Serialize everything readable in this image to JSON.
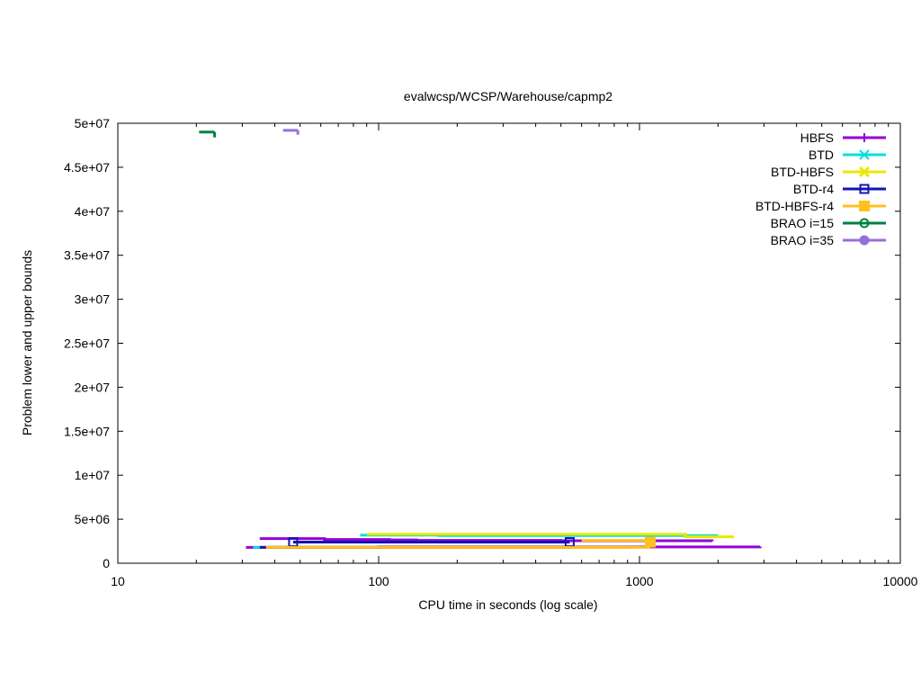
{
  "chart_data": {
    "type": "line",
    "title": "evalwcsp/WCSP/Warehouse/capmp2",
    "xlabel": "CPU time in seconds (log scale)",
    "ylabel": "Problem lower and upper bounds",
    "xscale": "log",
    "xlim": [
      10,
      10000
    ],
    "ylim": [
      0,
      50000000
    ],
    "x_ticks": [
      {
        "value": 10,
        "label": "10"
      },
      {
        "value": 100,
        "label": "100"
      },
      {
        "value": 1000,
        "label": "1000"
      },
      {
        "value": 10000,
        "label": "10000"
      }
    ],
    "y_ticks": [
      {
        "value": 0,
        "label": "0"
      },
      {
        "value": 5000000,
        "label": "5e+06"
      },
      {
        "value": 10000000,
        "label": "1e+07"
      },
      {
        "value": 15000000,
        "label": "1.5e+07"
      },
      {
        "value": 20000000,
        "label": "2e+07"
      },
      {
        "value": 25000000,
        "label": "2.5e+07"
      },
      {
        "value": 30000000,
        "label": "3e+07"
      },
      {
        "value": 35000000,
        "label": "3.5e+07"
      },
      {
        "value": 40000000,
        "label": "4e+07"
      },
      {
        "value": 45000000,
        "label": "4.5e+07"
      },
      {
        "value": 50000000,
        "label": "5e+07"
      }
    ],
    "legend_position": "top-right",
    "grid": false,
    "series": [
      {
        "name": "HBFS",
        "color": "#9400d3",
        "marker": "plus",
        "upper": [
          [
            35,
            2800000
          ],
          [
            62,
            2700000
          ],
          [
            110,
            2650000
          ],
          [
            140,
            2600000
          ],
          [
            500,
            2550000
          ],
          [
            1900,
            2500000
          ]
        ],
        "lower": [
          [
            31,
            1800000
          ],
          [
            100,
            1850000
          ],
          [
            500,
            1850000
          ],
          [
            2900,
            1900000
          ]
        ],
        "marks": []
      },
      {
        "name": "BTD",
        "color": "#00e0e0",
        "marker": "x",
        "upper": [
          [
            85,
            3200000
          ],
          [
            170,
            3150000
          ],
          [
            2000,
            3150000
          ]
        ],
        "lower": [
          [
            33,
            1800000
          ],
          [
            100,
            1800000
          ],
          [
            400,
            1800000
          ],
          [
            900,
            1850000
          ]
        ],
        "marks": []
      },
      {
        "name": "BTD-HBFS",
        "color": "#e8e800",
        "marker": "x-filled",
        "upper": [
          [
            90,
            3300000
          ],
          [
            440,
            3300000
          ],
          [
            1500,
            3000000
          ],
          [
            2300,
            3000000
          ]
        ],
        "lower": [
          [
            35,
            1800000
          ],
          [
            300,
            1800000
          ],
          [
            1000,
            1800000
          ]
        ],
        "marks": []
      },
      {
        "name": "BTD-r4",
        "color": "#1414b4",
        "marker": "open-square",
        "upper": [
          [
            47,
            2400000
          ],
          [
            200,
            2400000
          ],
          [
            540,
            2400000
          ]
        ],
        "lower": [
          [
            35,
            1800000
          ],
          [
            400,
            1800000
          ],
          [
            540,
            1800000
          ]
        ],
        "marks": [
          [
            47,
            2400000
          ],
          [
            540,
            2400000
          ]
        ]
      },
      {
        "name": "BTD-HBFS-r4",
        "color": "#ffc020",
        "marker": "filled-square",
        "upper": [
          [
            600,
            2600000
          ],
          [
            1100,
            2500000
          ]
        ],
        "lower": [
          [
            37,
            1800000
          ],
          [
            300,
            1800000
          ],
          [
            1100,
            1800000
          ]
        ],
        "marks": [
          [
            1100,
            2400000
          ]
        ]
      },
      {
        "name": "BRAO i=15",
        "color": "#008040",
        "marker": "open-circle",
        "upper": [
          [
            20.5,
            49000000
          ],
          [
            23.5,
            49000000
          ]
        ],
        "lower": [
          [
            23.5,
            49000000
          ],
          [
            23.5,
            48400000
          ]
        ],
        "marks": []
      },
      {
        "name": "BRAO i=35",
        "color": "#9370db",
        "marker": "filled-circle",
        "upper": [
          [
            43,
            49200000
          ],
          [
            49,
            49200000
          ]
        ],
        "lower": [
          [
            49,
            49200000
          ],
          [
            49,
            48700000
          ]
        ],
        "marks": []
      }
    ]
  }
}
